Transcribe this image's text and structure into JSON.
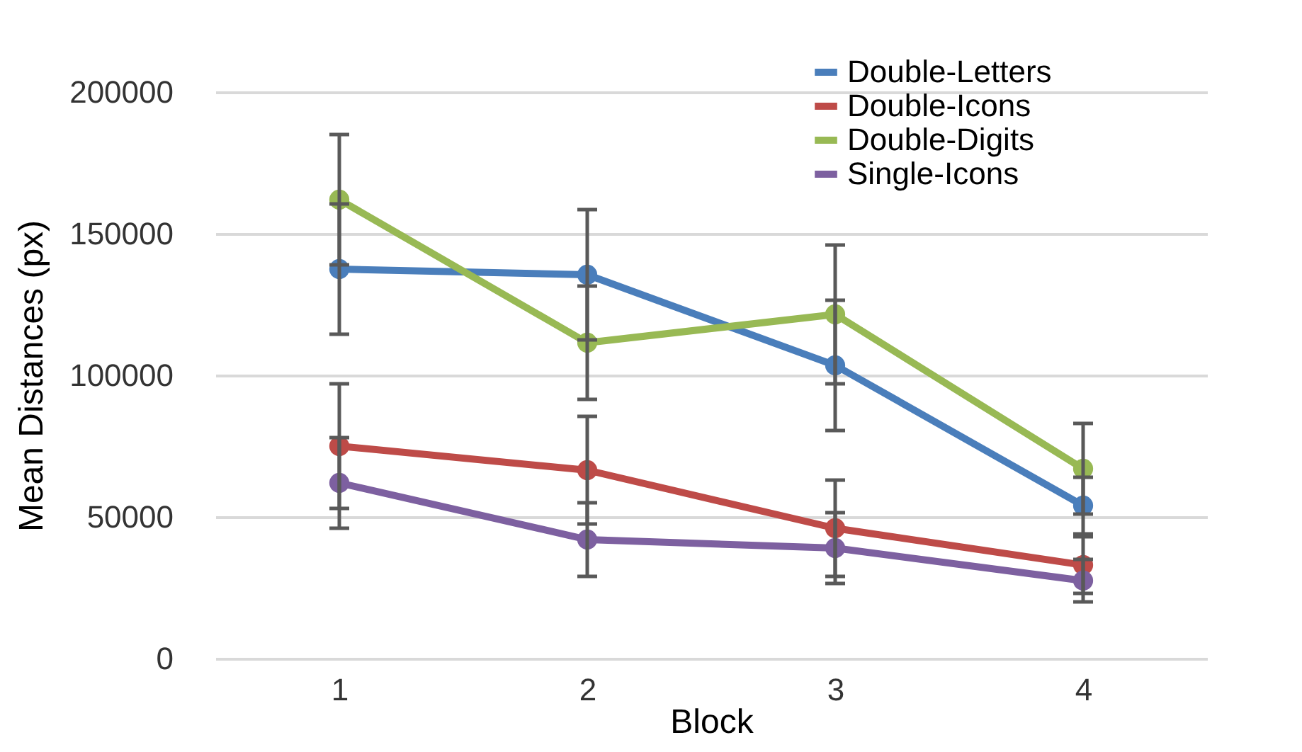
{
  "chart_data": {
    "type": "line",
    "xlabel": "Block",
    "ylabel": "Mean Distances (px)",
    "categories": [
      "1",
      "2",
      "3",
      "4"
    ],
    "ylim": [
      0,
      200000
    ],
    "yticks": [
      0,
      50000,
      100000,
      150000,
      200000
    ],
    "grid": "y",
    "legend": "top right",
    "marker": "circle",
    "series": [
      {
        "name": "Double-Letters",
        "color": "#4a7ebb",
        "values": [
          137500,
          135500,
          103500,
          54000
        ],
        "errors": [
          23000,
          23000,
          23000,
          10000
        ]
      },
      {
        "name": "Double-Icons",
        "color": "#be4b48",
        "values": [
          75000,
          66500,
          46000,
          33000
        ],
        "errors": [
          22000,
          19000,
          17000,
          10000
        ]
      },
      {
        "name": "Double-Digits",
        "color": "#98b954",
        "values": [
          162000,
          111500,
          121500,
          67000
        ],
        "errors": [
          23000,
          20000,
          24500,
          16000
        ]
      },
      {
        "name": "Single-Icons",
        "color": "#7d60a0",
        "values": [
          62000,
          42000,
          39000,
          27500
        ],
        "errors": [
          16000,
          13000,
          12500,
          7500
        ]
      }
    ]
  }
}
